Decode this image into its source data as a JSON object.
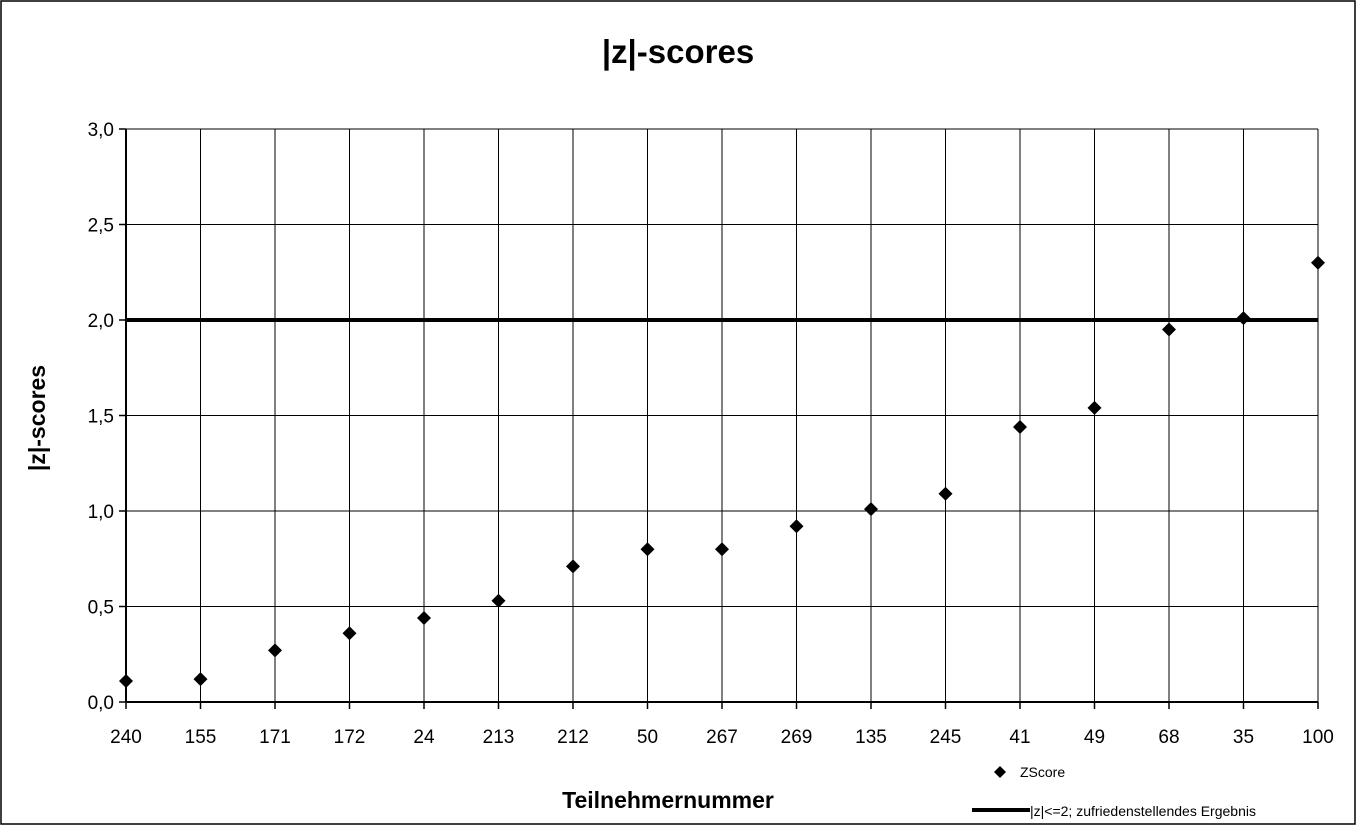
{
  "chart_data": {
    "type": "scatter",
    "title": "|z|-scores",
    "xlabel": "Teilnehmernummer",
    "ylabel": "|z|-scores",
    "categories": [
      "240",
      "155",
      "171",
      "172",
      "24",
      "213",
      "212",
      "50",
      "267",
      "269",
      "135",
      "245",
      "41",
      "49",
      "68",
      "35",
      "100"
    ],
    "series": [
      {
        "name": "ZScore",
        "marker": "diamond",
        "values": [
          0.11,
          0.12,
          0.27,
          0.36,
          0.44,
          0.53,
          0.71,
          0.8,
          0.8,
          0.92,
          1.01,
          1.09,
          1.44,
          1.54,
          1.95,
          2.01,
          2.3
        ]
      }
    ],
    "reference_line": {
      "name": "|z|<=2; zufriedenstellendes Ergebnis",
      "value": 2.0
    },
    "ylim": [
      0.0,
      3.0
    ],
    "yticks": [
      "0,0",
      "0,5",
      "1,0",
      "1,5",
      "2,0",
      "2,5",
      "3,0"
    ],
    "ytick_values": [
      0.0,
      0.5,
      1.0,
      1.5,
      2.0,
      2.5,
      3.0
    ],
    "grid": true,
    "legend_position": "bottom-right",
    "colors": {
      "marker": "#000000",
      "line": "#000000",
      "grid": "#000000",
      "background": "#ffffff"
    }
  }
}
